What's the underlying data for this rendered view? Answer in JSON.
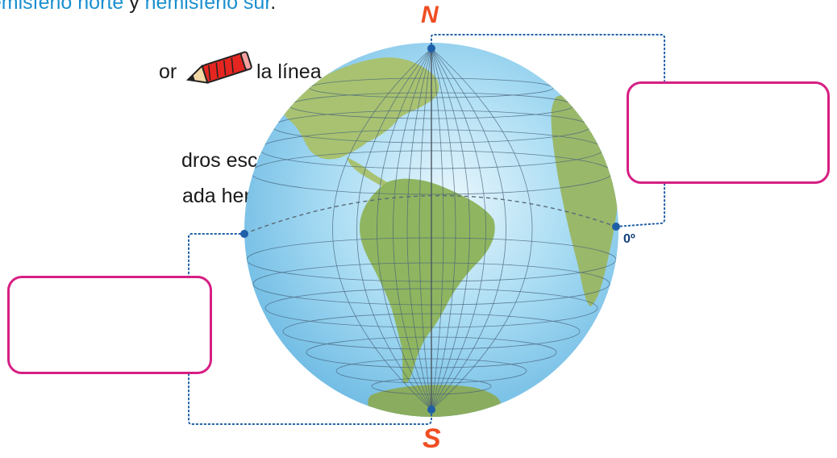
{
  "instructions": {
    "line1_sep": " y ",
    "line1_term_north": "hemisferio norte",
    "line1_term_south": "hemisferio sur",
    "line1_end": ".",
    "line2_a": "or",
    "line2_b": "la línea",
    "line3": "dros escribe el",
    "line4": "ada hemisferio."
  },
  "diagram": {
    "north_label": "N",
    "south_label": "S",
    "equator_label": "0º",
    "colors": {
      "ocean": "#8fd0ef",
      "land": "#9ab86a",
      "grid": "#44607a",
      "leader": "#1f5fa8",
      "box_border": "#d61f83",
      "pole_text": "#f04e23"
    }
  },
  "icons": {
    "pencil": "pencil-icon"
  }
}
